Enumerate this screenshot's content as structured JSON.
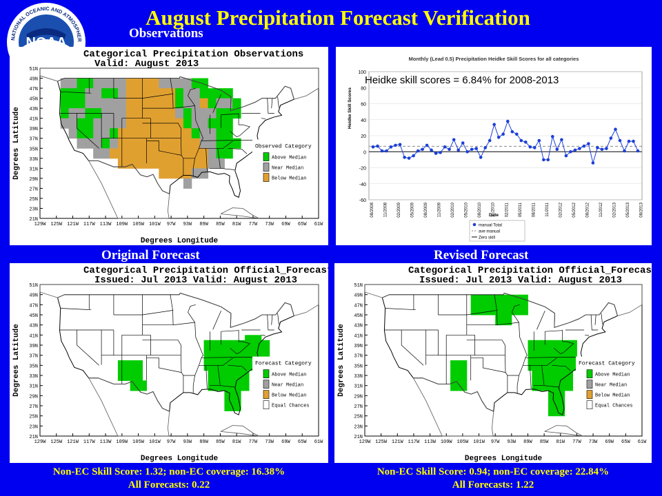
{
  "header": {
    "title": "August Precipitation Forecast Verification",
    "logo_text": "NOAA",
    "logo_ring_text": "NATIONAL OCEANIC AND ATMOSPHERIC ADMINISTRATION"
  },
  "sections": {
    "observations": "Observations",
    "original": "Original Forecast",
    "revised": "Revised Forecast"
  },
  "colors": {
    "above": "#00cc00",
    "near": "#a0a0a0",
    "below": "#e0a030",
    "background": "#0000f0",
    "title": "#ffff00"
  },
  "obs_map": {
    "title": "Categorical Precipitation Observations",
    "subtitle": "Valid: August 2013",
    "ylabel": "Degrees Latitude",
    "xlabel": "Degrees Longitude",
    "legend_title": "Observed Category",
    "legend": [
      "Above Median",
      "Near Median",
      "Below Median"
    ]
  },
  "orig_map": {
    "title": "Categorical Precipitation Official_Forecast",
    "subtitle": "Issued: Jul 2013 Valid: August 2013",
    "ylabel": "Degrees Latitude",
    "xlabel": "Degrees Longitude",
    "legend_title": "Forecast Category",
    "legend": [
      "Above Median",
      "Near Median",
      "Below Median",
      "Equal Chances"
    ]
  },
  "rev_map": {
    "title": "Categorical Precipitation Official_Forecast",
    "subtitle": "Issued: Jul 2013 Valid: August 2013",
    "ylabel": "Degrees Latitude",
    "xlabel": "Degrees Longitude",
    "legend_title": "Forecast Category",
    "legend": [
      "Above Median",
      "Near Median",
      "Below Median",
      "Equal Chances"
    ]
  },
  "map_axes": {
    "lat_ticks": [
      "51N",
      "49N",
      "47N",
      "45N",
      "43N",
      "41N",
      "39N",
      "37N",
      "35N",
      "33N",
      "31N",
      "29N",
      "27N",
      "25N",
      "23N",
      "21N"
    ],
    "lon_ticks": [
      "129W",
      "125W",
      "121W",
      "117W",
      "113W",
      "109W",
      "105W",
      "101W",
      "97W",
      "93W",
      "89W",
      "85W",
      "81W",
      "77W",
      "73W",
      "69W",
      "65W",
      "61W"
    ]
  },
  "footer": {
    "original_score": "Non-EC Skill Score: 1.32; non-EC coverage: 16.38%",
    "original_all": "All Forecasts:  0.22",
    "revised_score": "Non-EC Skill Score:  0.94; non-EC coverage: 22.84%",
    "revised_all": "All Forecasts: 1.22"
  },
  "chart_data": {
    "type": "line",
    "title": "Monthly (Lead 0.5) Precipitation Heidke Skill Scores for all categories",
    "annotation": "Heidke skill scores = 6.84% for 2008-2013",
    "xlabel": "Date",
    "ylabel": "Heidke Skill Scores",
    "ylim": [
      -60,
      100
    ],
    "yticks": [
      -60,
      -40,
      -20,
      0,
      20,
      40,
      60,
      80,
      100
    ],
    "xtick_labels": [
      "08/2008",
      "11/2008",
      "02/2009",
      "05/2009",
      "08/2009",
      "11/2009",
      "02/2010",
      "05/2010",
      "08/2010",
      "11/2010",
      "02/2011",
      "05/2011",
      "08/2011",
      "11/2011",
      "02/2012",
      "05/2012",
      "08/2012",
      "11/2012",
      "02/2013",
      "05/2013",
      "08/2013"
    ],
    "legend": [
      "manual Total",
      "ave manual",
      "Zero skill"
    ],
    "average": 6.84,
    "series": [
      {
        "name": "manual Total",
        "values": [
          6,
          7,
          1,
          1,
          6,
          8,
          9,
          -7,
          -8,
          -5,
          1,
          3,
          8,
          2,
          -2,
          -1,
          6,
          3,
          15,
          2,
          11,
          0,
          3,
          4,
          -7,
          5,
          14,
          34,
          18,
          22,
          38,
          25,
          22,
          14,
          12,
          6,
          5,
          14,
          -10,
          -10,
          19,
          3,
          15,
          -5,
          0,
          2,
          4,
          7,
          10,
          -14,
          5,
          3,
          4,
          17,
          28,
          14,
          1,
          13,
          13,
          1
        ]
      }
    ]
  }
}
